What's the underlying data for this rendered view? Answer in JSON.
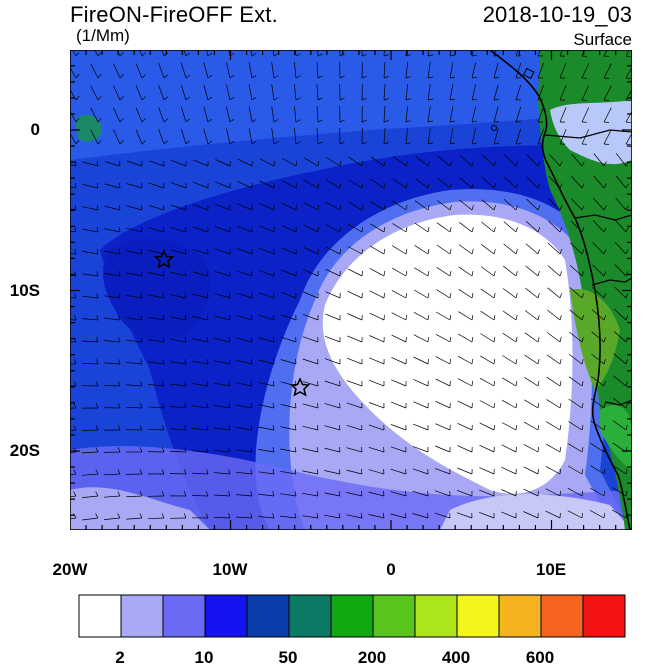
{
  "title": "FireON-FireOFF Ext.",
  "datetime": "2018-10-19_03",
  "units": "(1/Mm)",
  "level": "Surface",
  "lat_ticks": [
    "0",
    "10S",
    "20S"
  ],
  "lon_ticks": [
    "20W",
    "10W",
    "0",
    "10E"
  ],
  "colorbar": {
    "colors": [
      "#ffffff",
      "#a8a8f5",
      "#6a6af5",
      "#1414f0",
      "#0a3caa",
      "#0a7a64",
      "#12a812",
      "#58c41e",
      "#aee61e",
      "#f5f51e",
      "#f5b41e",
      "#f5641e",
      "#f51414"
    ],
    "labels": [
      "2",
      "10",
      "50",
      "200",
      "400",
      "600"
    ]
  }
}
